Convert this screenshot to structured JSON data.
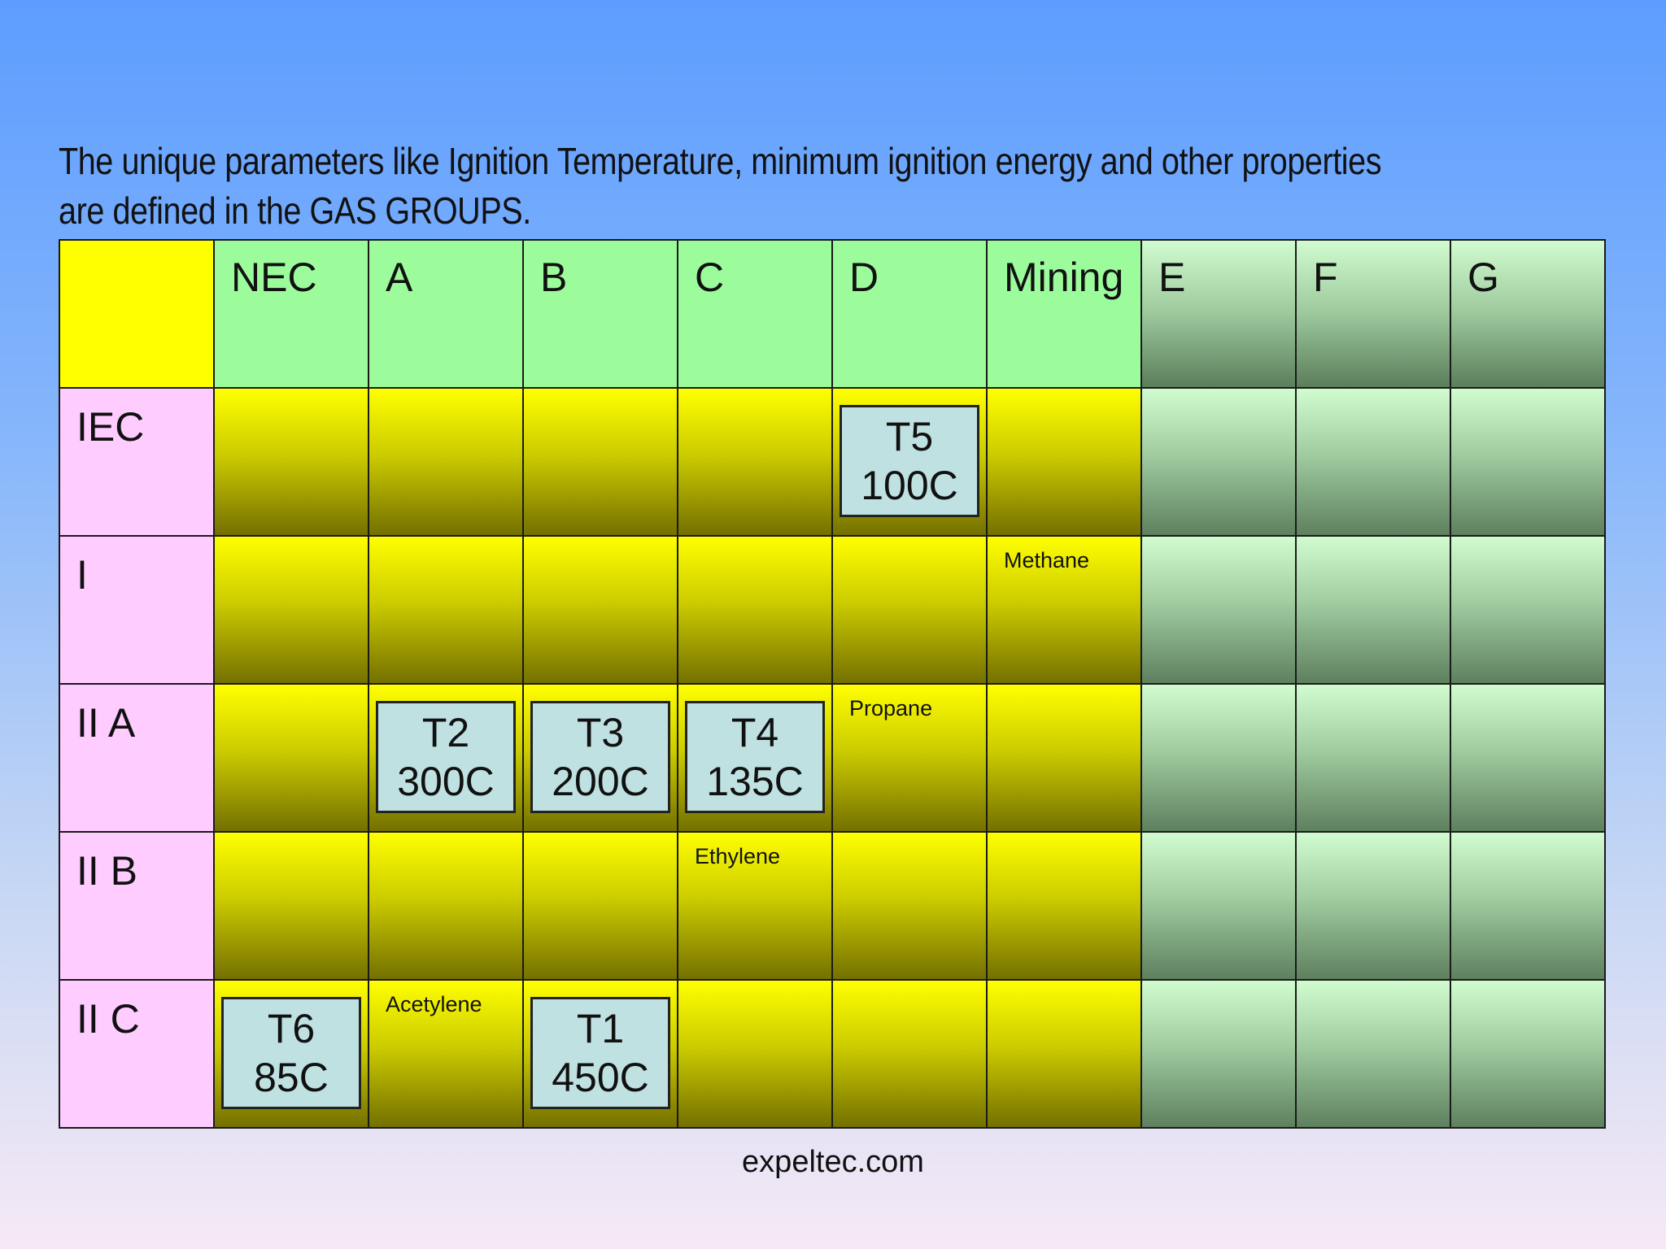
{
  "heading": {
    "line1": "The unique parameters like Ignition Temperature, minimum ignition energy and other properties",
    "line2": "are defined in the GAS GROUPS."
  },
  "table": {
    "columns": [
      "",
      "NEC",
      "A",
      "B",
      "C",
      "D",
      "Mining",
      "E",
      "F",
      "G"
    ],
    "rows": [
      {
        "label": "IEC",
        "cells": [
          null,
          null,
          null,
          null,
          {
            "type": "temp",
            "code": "T5",
            "value": "100C"
          },
          null,
          null,
          null,
          null
        ]
      },
      {
        "label": "I",
        "cells": [
          null,
          null,
          null,
          null,
          null,
          {
            "type": "gas",
            "text": "Methane"
          },
          null,
          null,
          null
        ]
      },
      {
        "label": "II A",
        "cells": [
          null,
          {
            "type": "temp",
            "code": "T2",
            "value": "300C"
          },
          {
            "type": "temp",
            "code": "T3",
            "value": "200C"
          },
          {
            "type": "temp",
            "code": "T4",
            "value": "135C"
          },
          {
            "type": "gas",
            "text": "Propane"
          },
          null,
          null,
          null,
          null
        ]
      },
      {
        "label": "II B",
        "cells": [
          null,
          null,
          null,
          {
            "type": "gas",
            "text": "Ethylene"
          },
          null,
          null,
          null,
          null,
          null
        ]
      },
      {
        "label": "II C",
        "cells": [
          {
            "type": "temp",
            "code": "T6",
            "value": "85C"
          },
          {
            "type": "gas",
            "text": "Acetylene"
          },
          {
            "type": "temp",
            "code": "T1",
            "value": "450C"
          },
          null,
          null,
          null,
          null,
          null,
          null
        ]
      }
    ]
  },
  "footer": {
    "text": "expeltec.com"
  },
  "colors": {
    "corner": "#ffff00",
    "header_green": "#9cfc9c",
    "row_label_pink": "#ffccff",
    "temp_box": "#bfe1e1"
  }
}
